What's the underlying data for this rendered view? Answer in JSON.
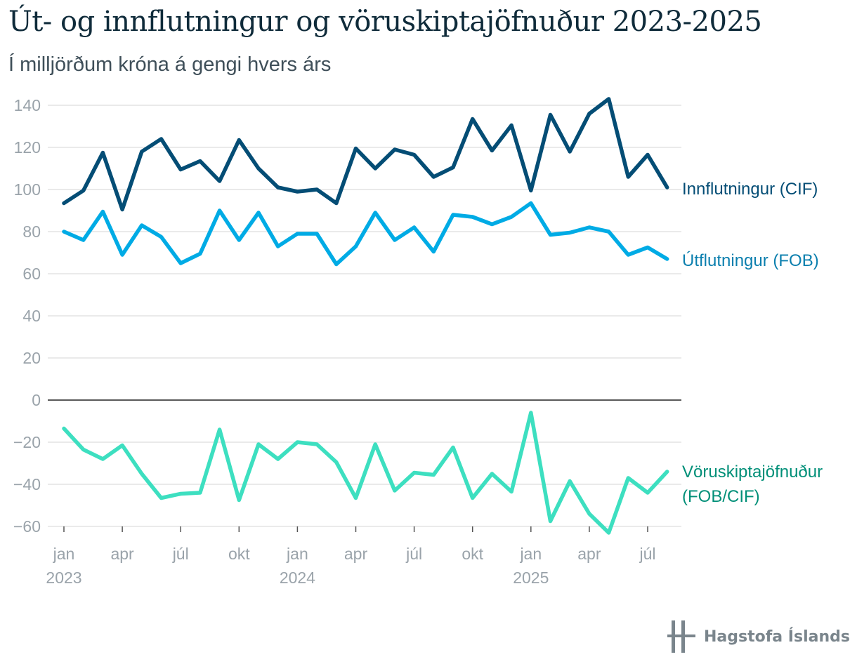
{
  "title": "Út- og innflutningur og vöruskiptajöfnuður 2023-2025",
  "subtitle": "Í milljörðum króna á gengi hvers árs",
  "brand": "Hagstofa Íslands",
  "colors": {
    "import": "#044d75",
    "export": "#00abe5",
    "balance": "#3ddfc0",
    "import_label": "#044d75",
    "export_label": "#0b7fae",
    "balance_label": "#008f78",
    "grid": "#dddddd",
    "zero": "#222222",
    "tick": "#9aa3aa",
    "logo": "#7a858c"
  },
  "chart_data": {
    "type": "line",
    "title": "Út- og innflutningur og vöruskiptajöfnuður 2023-2025",
    "subtitle": "Í milljörðum króna á gengi hvers árs",
    "xlabel": "",
    "ylabel": "",
    "ylim": [
      -60,
      140
    ],
    "yticks": [
      140,
      120,
      100,
      80,
      60,
      40,
      20,
      0,
      -20,
      -40,
      -60
    ],
    "grid": true,
    "x_tick_labels": [
      {
        "month": "jan",
        "year": "2023"
      },
      {
        "month": "apr",
        "year": ""
      },
      {
        "month": "júl",
        "year": ""
      },
      {
        "month": "okt",
        "year": ""
      },
      {
        "month": "jan",
        "year": "2024"
      },
      {
        "month": "apr",
        "year": ""
      },
      {
        "month": "júl",
        "year": ""
      },
      {
        "month": "okt",
        "year": ""
      },
      {
        "month": "jan",
        "year": "2025"
      },
      {
        "month": "apr",
        "year": ""
      },
      {
        "month": "júl",
        "year": ""
      }
    ],
    "x": [
      "2023-01",
      "2023-02",
      "2023-03",
      "2023-04",
      "2023-05",
      "2023-06",
      "2023-07",
      "2023-08",
      "2023-09",
      "2023-10",
      "2023-11",
      "2023-12",
      "2024-01",
      "2024-02",
      "2024-03",
      "2024-04",
      "2024-05",
      "2024-06",
      "2024-07",
      "2024-08",
      "2024-09",
      "2024-10",
      "2024-11",
      "2024-12",
      "2025-01",
      "2025-02",
      "2025-03",
      "2025-04",
      "2025-05",
      "2025-06",
      "2025-07",
      "2025-08"
    ],
    "series": [
      {
        "name": "Innflutningur (CIF)",
        "values": [
          93.5,
          99.5,
          117.5,
          90.5,
          118,
          124,
          109.5,
          113.5,
          104,
          123.5,
          110,
          101,
          99,
          100,
          93.5,
          119.5,
          110,
          119,
          116.5,
          106,
          110.5,
          133.5,
          118.5,
          130.5,
          99.5,
          135.5,
          118,
          136,
          143,
          106,
          116.5,
          101
        ]
      },
      {
        "name": "Útflutningur (FOB)",
        "values": [
          80,
          76,
          89.5,
          69,
          83,
          77.5,
          65,
          69.5,
          90,
          76,
          89,
          73,
          79,
          79,
          64.5,
          73,
          89,
          76,
          82,
          70.5,
          88,
          87,
          83.5,
          87,
          93.5,
          78.5,
          79.5,
          82,
          80,
          69,
          72.5,
          67
        ]
      },
      {
        "name": "Vöruskiptajöfnuður (FOB/CIF)",
        "values": [
          -13.5,
          -23.5,
          -28,
          -21.5,
          -35,
          -46.5,
          -44.5,
          -44,
          -14,
          -47.5,
          -21,
          -28,
          -20,
          -21,
          -29.5,
          -46.5,
          -21,
          -43,
          -34.5,
          -35.5,
          -22.5,
          -46.5,
          -35,
          -43.5,
          -6,
          -57.5,
          -38.5,
          -54,
          -63,
          -37,
          -44,
          -34
        ]
      }
    ],
    "series_labels": [
      {
        "lines": [
          "Innflutningur (CIF)"
        ]
      },
      {
        "lines": [
          "Útflutningur (FOB)"
        ]
      },
      {
        "lines": [
          "Vöruskiptajöfnuður",
          "(FOB/CIF)"
        ]
      }
    ]
  }
}
